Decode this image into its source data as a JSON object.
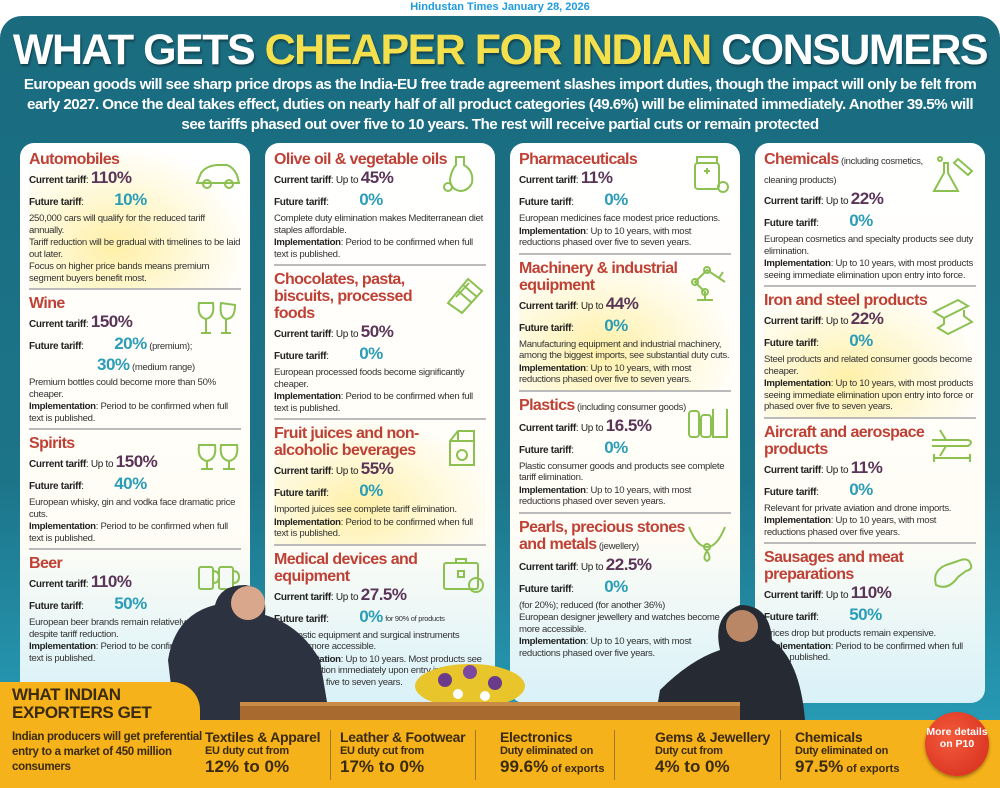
{
  "caption": "Hindustan Times January 28, 2026",
  "title": {
    "part1": "WHAT GETS ",
    "highlight": "CHEAPER FOR INDIAN",
    "part2": " CONSUMERS"
  },
  "subtitle": "European goods will see sharp price drops as the India-EU free trade agreement slashes import duties, though the impact will only be felt from early 2027. Once the deal takes effect, duties on nearly half of all product categories (49.6%) will be eliminated immediately. Another 39.5% will see tariffs phased out over five to 10 years. The rest will receive partial cuts or remain protected",
  "labels": {
    "current": "Current tariff",
    "future": "Future tariff",
    "implementation": "Implementation",
    "up_to": "Up to "
  },
  "colors": {
    "panel": "#1b6f82",
    "title_red": "#bf4136",
    "current": "#5b3558",
    "future": "#2b9db6",
    "band": "#f6b21a"
  },
  "columns": [
    {
      "items": [
        {
          "title": "Automobiles",
          "icon": "car-icon",
          "up_to": false,
          "current": "110%",
          "future": [
            {
              "value": "10%",
              "note": ""
            }
          ],
          "highlight": true,
          "notes": [
            "250,000 cars will qualify for the reduced tariff annually.",
            "Tariff reduction will be gradual with timelines to be laid out later.",
            "Focus on higher price bands means premium segment buyers benefit most."
          ]
        },
        {
          "title": "Wine",
          "icon": "wine-glasses-icon",
          "up_to": false,
          "current": "150%",
          "future": [
            {
              "value": "20%",
              "note": "(premium);"
            },
            {
              "value": "30%",
              "note": "(medium range)"
            }
          ],
          "notes": [
            "Premium bottles could become more than 50% cheaper."
          ],
          "implementation": "Period to be confirmed when full text is published."
        },
        {
          "title": "Spirits",
          "icon": "brandy-glasses-icon",
          "up_to": true,
          "current": "150%",
          "future": [
            {
              "value": "40%",
              "note": ""
            }
          ],
          "notes": [
            "European whisky, gin and vodka face dramatic price cuts."
          ],
          "implementation": "Period to be confirmed when full text is published."
        },
        {
          "title": "Beer",
          "icon": "beer-mugs-icon",
          "up_to": false,
          "current": "110%",
          "future": [
            {
              "value": "50%",
              "note": ""
            }
          ],
          "notes": [
            "European beer brands remain relatively expensive despite tariff reduction."
          ],
          "implementation": "Period to be confirmed when full text is published."
        }
      ]
    },
    {
      "items": [
        {
          "title": "Olive oil & vegetable oils",
          "icon": "oil-bottle-icon",
          "up_to": true,
          "current": "45%",
          "future": [
            {
              "value": "0%",
              "note": ""
            }
          ],
          "notes": [
            "Complete duty elimination makes Mediterranean diet staples affordable."
          ],
          "implementation": "Period to be confirmed when full text is published."
        },
        {
          "title": "Chocolates, pasta, biscuits, processed foods",
          "icon": "chocolate-bar-icon",
          "up_to": true,
          "current": "50%",
          "future": [
            {
              "value": "0%",
              "note": ""
            }
          ],
          "notes": [
            "European processed foods become significantly cheaper."
          ],
          "implementation": "Period to be confirmed when full text is published."
        },
        {
          "title": "Fruit juices and non-alcoholic beverages",
          "icon": "juice-carton-icon",
          "up_to": true,
          "current": "55%",
          "future": [
            {
              "value": "0%",
              "note": ""
            }
          ],
          "highlight": true,
          "notes": [
            "Imported juices see complete tariff elimination."
          ],
          "implementation": "Period to be confirmed when full text is published."
        },
        {
          "title": "Medical devices and equipment",
          "icon": "medical-kit-icon",
          "up_to": true,
          "current": "27.5%",
          "future": [
            {
              "value": "0%",
              "small": "for 90% of products"
            }
          ],
          "notes": [
            "Diagnostic equipment and surgical instruments become more accessible."
          ],
          "implementation": "Up to 10 years. Most products see tariff elimination immediately upon entry into force or phased over five to seven years."
        }
      ]
    },
    {
      "items": [
        {
          "title": "Pharmaceuticals",
          "icon": "medicine-bottle-icon",
          "up_to": false,
          "current": "11%",
          "future": [
            {
              "value": "0%",
              "note": ""
            }
          ],
          "notes": [
            "European medicines face modest price reductions."
          ],
          "implementation": "Up to 10 years, with most reductions phased over five to seven years."
        },
        {
          "title": "Machinery & industrial equipment",
          "icon": "robot-arm-icon",
          "up_to": true,
          "current": "44%",
          "future": [
            {
              "value": "0%",
              "note": ""
            }
          ],
          "highlight": true,
          "notes": [
            "Manufacturing equipment and industrial machinery, among the biggest imports, see substantial duty cuts."
          ],
          "implementation": "Up to 10 years, with most reductions phased over five to seven years."
        },
        {
          "title": "Plastics",
          "title_note": " (including consumer goods)",
          "icon": "plastic-bottles-icon",
          "up_to": true,
          "current": "16.5%",
          "future": [
            {
              "value": "0%",
              "note": ""
            }
          ],
          "notes": [
            "Plastic consumer goods and products see complete tariff elimination."
          ],
          "implementation": "Up to 10 years, with most reductions phased over seven years."
        },
        {
          "title": "Pearls, precious stones and metals",
          "title_note": " (jewellery)",
          "icon": "necklace-icon",
          "up_to": true,
          "current": "22.5%",
          "future": [
            {
              "value": "0%",
              "note": ""
            }
          ],
          "future_extra": "(for 20%); reduced (for another 36%)",
          "notes": [
            "European designer jewellery and watches become more accessible."
          ],
          "implementation": "Up to 10 years, with most reductions phased over five years."
        }
      ]
    },
    {
      "items": [
        {
          "title": "Chemicals",
          "title_note": " (including cosmetics, cleaning products)",
          "icon": "flask-icon",
          "up_to": true,
          "current": "22%",
          "future": [
            {
              "value": "0%",
              "note": ""
            }
          ],
          "notes": [
            "European cosmetics and specialty products see duty elimination."
          ],
          "implementation": "Up to 10 years, with most products seeing immediate elimination upon entry into force."
        },
        {
          "title": "Iron and steel products",
          "icon": "steel-beam-icon",
          "up_to": true,
          "current": "22%",
          "future": [
            {
              "value": "0%",
              "note": ""
            }
          ],
          "highlight": true,
          "notes": [
            "Steel products and related consumer goods become cheaper."
          ],
          "implementation": "Up to 10 years, with most products seeing immediate elimination upon entry into force or phased over five to seven years."
        },
        {
          "title": "Aircraft and aerospace products",
          "icon": "plane-wrench-icon",
          "up_to": true,
          "current": "11%",
          "future": [
            {
              "value": "0%",
              "note": ""
            }
          ],
          "notes": [
            "Relevant for private aviation and drone imports."
          ],
          "implementation": "Up to 10 years, with most reductions phased over five years."
        },
        {
          "title": "Sausages and meat preparations",
          "icon": "drumstick-icon",
          "up_to": true,
          "current": "110%",
          "future": [
            {
              "value": "50%",
              "note": ""
            }
          ],
          "notes": [
            "Prices drop but products remain expensive."
          ],
          "implementation": "Period to be confirmed when full text is published."
        }
      ]
    }
  ],
  "exporters": {
    "title_line1": "WHAT INDIAN",
    "title_line2": "EXPORTERS GET",
    "description": "Indian producers will get preferential entry to a market of 450 million consumers",
    "items": [
      {
        "name": "Textiles & Apparel",
        "line": "EU duty cut from",
        "value": "12% to 0%",
        "suffix": ""
      },
      {
        "name": "Leather & Footwear",
        "line": "EU duty cut from",
        "value": "17% to 0%",
        "suffix": ""
      },
      {
        "name": "Electronics",
        "line": "Duty eliminated on",
        "value": "99.6%",
        "suffix": " of exports"
      },
      {
        "name": "Gems & Jewellery",
        "line": "Duty cut from",
        "value": "4% to 0%",
        "suffix": ""
      },
      {
        "name": "Chemicals",
        "line": "Duty eliminated on",
        "value": "97.5%",
        "suffix": " of exports"
      }
    ],
    "badge": "More details on P10"
  }
}
